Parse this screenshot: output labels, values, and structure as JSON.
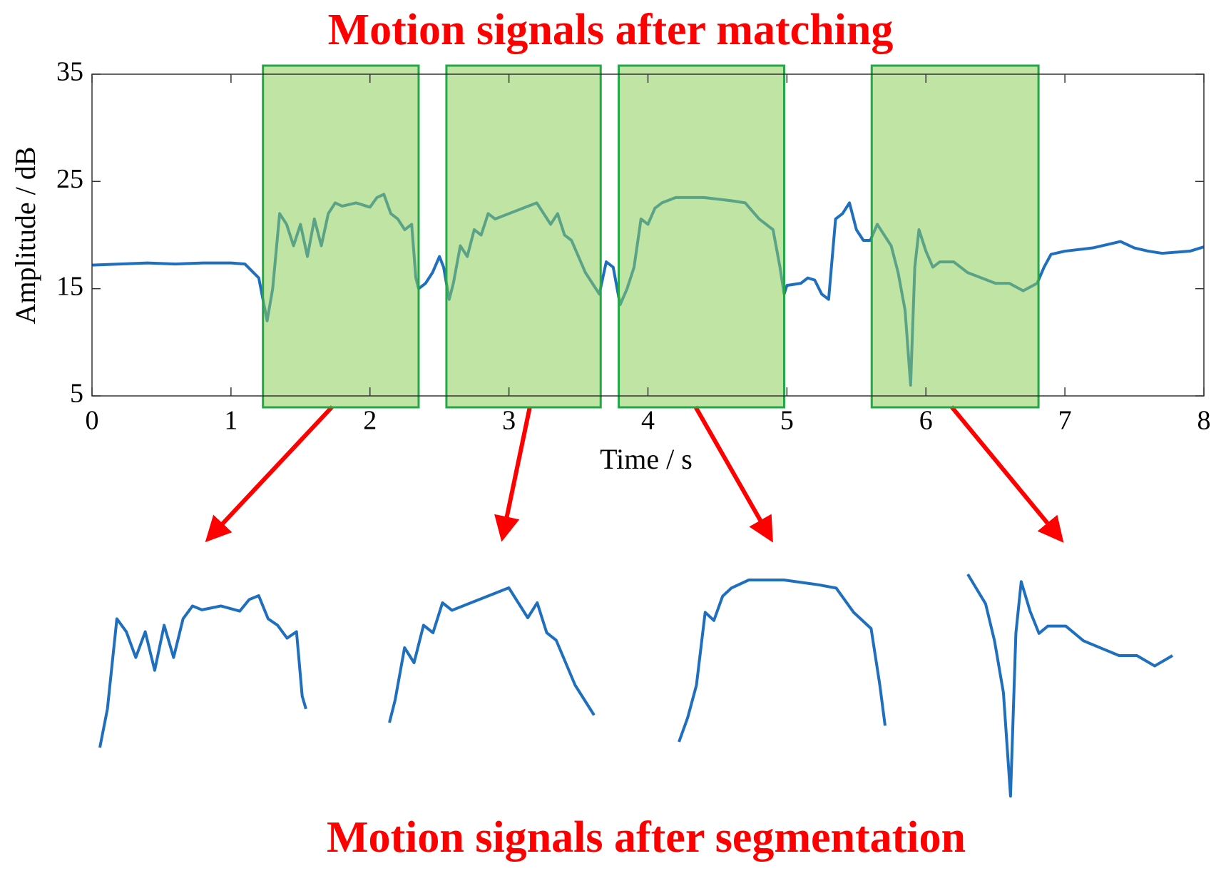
{
  "chart_data": {
    "type": "line",
    "title": "Motion signals after matching",
    "caption": "Motion signals after segmentation",
    "x_label": "Time / s",
    "y_label": "Amplitude / dB",
    "xlim": [
      0,
      8
    ],
    "ylim": [
      5,
      35
    ],
    "xticks": [
      0,
      1,
      2,
      3,
      4,
      5,
      6,
      7,
      8
    ],
    "yticks": [
      5,
      15,
      25,
      35
    ],
    "highlights": [
      [
        1.23,
        2.35
      ],
      [
        2.55,
        3.66
      ],
      [
        3.79,
        4.98
      ],
      [
        5.61,
        6.81
      ]
    ],
    "x": [
      0,
      0.2,
      0.4,
      0.6,
      0.8,
      1.0,
      1.1,
      1.2,
      1.26,
      1.3,
      1.35,
      1.4,
      1.45,
      1.5,
      1.55,
      1.6,
      1.65,
      1.7,
      1.75,
      1.8,
      1.9,
      2.0,
      2.05,
      2.1,
      2.15,
      2.2,
      2.25,
      2.3,
      2.33,
      2.35,
      2.4,
      2.45,
      2.5,
      2.53,
      2.57,
      2.6,
      2.65,
      2.7,
      2.75,
      2.8,
      2.85,
      2.9,
      3.0,
      3.1,
      3.2,
      3.25,
      3.3,
      3.35,
      3.4,
      3.45,
      3.5,
      3.55,
      3.6,
      3.65,
      3.7,
      3.75,
      3.8,
      3.85,
      3.9,
      3.95,
      4.0,
      4.05,
      4.1,
      4.2,
      4.4,
      4.6,
      4.7,
      4.8,
      4.85,
      4.9,
      4.95,
      4.98,
      5.0,
      5.1,
      5.15,
      5.2,
      5.25,
      5.3,
      5.32,
      5.35,
      5.4,
      5.45,
      5.5,
      5.55,
      5.6,
      5.65,
      5.7,
      5.75,
      5.8,
      5.85,
      5.89,
      5.92,
      5.95,
      6.0,
      6.05,
      6.1,
      6.2,
      6.3,
      6.4,
      6.5,
      6.6,
      6.7,
      6.8,
      6.85,
      6.9,
      7.0,
      7.2,
      7.4,
      7.5,
      7.6,
      7.7,
      7.8,
      7.9,
      8.0
    ],
    "series": [
      {
        "color": "#1f6fbf",
        "values": [
          17.2,
          17.3,
          17.4,
          17.3,
          17.4,
          17.4,
          17.3,
          16,
          12,
          15,
          22,
          21,
          19,
          21,
          18,
          21.5,
          19,
          22,
          23,
          22.7,
          23,
          22.6,
          23.5,
          23.8,
          22,
          21.5,
          20.5,
          21,
          16,
          15,
          15.5,
          16.5,
          18,
          17,
          14,
          15.5,
          19,
          18,
          20.5,
          20,
          22,
          21.5,
          22,
          22.5,
          23,
          22,
          21,
          22,
          20,
          19.5,
          18,
          16.5,
          15.5,
          14.5,
          17.5,
          17,
          13.5,
          15,
          17,
          21.5,
          21,
          22.5,
          23,
          23.5,
          23.5,
          23.2,
          23,
          21.5,
          21,
          20.5,
          17,
          14.5,
          15.3,
          15.5,
          16,
          15.8,
          14.5,
          14,
          17,
          21.5,
          22,
          23,
          20.5,
          19.5,
          19.5,
          21,
          20,
          19,
          16.5,
          13,
          6,
          17,
          20.5,
          18.5,
          17,
          17.5,
          17.5,
          16.5,
          16,
          15.5,
          15.5,
          14.8,
          15.5,
          17,
          18.2,
          18.5,
          18.8,
          19.4,
          18.8,
          18.5,
          18.3,
          18.4,
          18.5,
          18.9
        ]
      }
    ]
  }
}
